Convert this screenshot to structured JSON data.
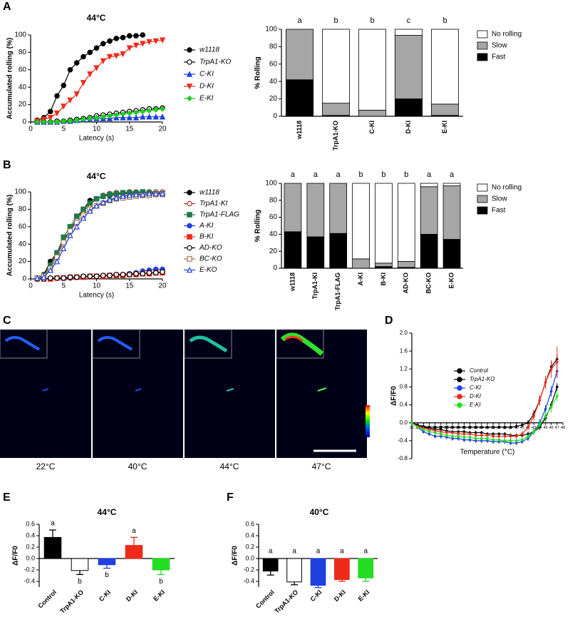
{
  "panel_labels": [
    "A",
    "B",
    "C",
    "D",
    "E",
    "F"
  ],
  "images": {
    "captions": [
      "22°C",
      "40°C",
      "44°C",
      "47°C"
    ]
  },
  "chart_data": [
    {
      "type": "line",
      "title": "44°C",
      "xlabel": "Latency (s)",
      "ylabel": "Accumulated rolling (%)",
      "x": [
        1,
        2,
        3,
        4,
        5,
        6,
        7,
        8,
        9,
        10,
        11,
        12,
        13,
        14,
        15,
        16,
        17,
        18,
        19,
        20
      ],
      "xlim": [
        0,
        20
      ],
      "xticks": [
        0,
        5,
        10,
        15,
        20
      ],
      "ylim": [
        0,
        100
      ],
      "yticks": [
        0,
        20,
        40,
        60,
        80,
        100
      ],
      "legend": "right",
      "series": [
        {
          "name": "w1118",
          "color": "#000000",
          "marker": "circle",
          "values": [
            2,
            5,
            12,
            30,
            42,
            60,
            68,
            75,
            80,
            85,
            90,
            93,
            96,
            97,
            99,
            99,
            100,
            null,
            null,
            null
          ]
        },
        {
          "name": "TrpA1-KO",
          "color": "#000000",
          "marker": "circle-open",
          "values": [
            0,
            0,
            0,
            1,
            1,
            2,
            3,
            4,
            5,
            7,
            8,
            9,
            10,
            11,
            12,
            13,
            14,
            15,
            15,
            16
          ]
        },
        {
          "name": "C-KI",
          "color": "#1f3fe0",
          "marker": "triangle",
          "values": [
            0,
            0,
            0,
            0,
            1,
            1,
            2,
            3,
            3,
            4,
            4,
            4,
            5,
            5,
            5,
            5,
            6,
            6,
            6,
            6
          ]
        },
        {
          "name": "D-KI",
          "color": "#ee2a1a",
          "marker": "triangle-down",
          "values": [
            1,
            3,
            5,
            10,
            18,
            25,
            32,
            45,
            55,
            62,
            70,
            75,
            76,
            78,
            85,
            88,
            90,
            92,
            93,
            94
          ]
        },
        {
          "name": "E-KI",
          "color": "#22cc22",
          "marker": "diamond",
          "values": [
            0,
            0,
            0,
            0,
            1,
            1,
            2,
            3,
            4,
            5,
            6,
            7,
            8,
            9,
            10,
            11,
            12,
            13,
            14,
            15
          ]
        }
      ]
    },
    {
      "type": "stacked_bar",
      "ylabel": "% Rolling",
      "categories": [
        "w1118",
        "TrpA1-KO",
        "C-KI",
        "D-KI",
        "E-KI"
      ],
      "letters": [
        "a",
        "b",
        "b",
        "c",
        "b"
      ],
      "ylim": [
        0,
        100
      ],
      "yticks": [
        0,
        20,
        40,
        60,
        80,
        100
      ],
      "legend": "right",
      "series": [
        {
          "name": "Fast",
          "color": "#000000",
          "values": [
            42,
            1,
            0,
            20,
            1
          ]
        },
        {
          "name": "Slow",
          "color": "#a6a6a6",
          "values": [
            58,
            14,
            7,
            73,
            13
          ]
        },
        {
          "name": "No rolling",
          "color": "#ffffff",
          "values": [
            0,
            85,
            93,
            7,
            86
          ]
        }
      ]
    },
    {
      "type": "line",
      "title": "44°C",
      "xlabel": "Latency (s)",
      "ylabel": "Accumulated rolling (%)",
      "x": [
        1,
        2,
        3,
        4,
        5,
        6,
        7,
        8,
        9,
        10,
        11,
        12,
        13,
        14,
        15,
        16,
        17,
        18,
        19,
        20
      ],
      "xlim": [
        0,
        20
      ],
      "xticks": [
        0,
        5,
        10,
        15,
        20
      ],
      "ylim": [
        0,
        100
      ],
      "yticks": [
        0,
        20,
        40,
        60,
        80,
        100
      ],
      "legend": "right",
      "series": [
        {
          "name": "w1118",
          "color": "#000000",
          "marker": "circle",
          "values": [
            1,
            5,
            20,
            30,
            45,
            55,
            70,
            80,
            90,
            92,
            95,
            96,
            97,
            98,
            98,
            98,
            99,
            99,
            99,
            99
          ]
        },
        {
          "name": "TrpA1-KI",
          "color": "#c0281c",
          "marker": "circle-open",
          "values": [
            1,
            4,
            15,
            28,
            42,
            55,
            68,
            78,
            85,
            92,
            96,
            98,
            99,
            99,
            100,
            100,
            100,
            100,
            100,
            100
          ]
        },
        {
          "name": "TrpA1-FLAG",
          "color": "#1f7a4d",
          "marker": "square",
          "values": [
            1,
            4,
            16,
            30,
            48,
            60,
            72,
            80,
            87,
            92,
            95,
            97,
            98,
            99,
            99,
            99,
            100,
            99,
            98,
            98
          ]
        },
        {
          "name": "A-KI",
          "color": "#1f3fe0",
          "marker": "circle",
          "values": [
            0,
            0,
            0,
            1,
            1,
            1,
            2,
            2,
            3,
            3,
            4,
            4,
            5,
            5,
            6,
            7,
            9,
            10,
            11,
            11
          ]
        },
        {
          "name": "B-KI",
          "color": "#ee2a1a",
          "marker": "square",
          "values": [
            0,
            0,
            0,
            1,
            1,
            2,
            2,
            2,
            3,
            3,
            3,
            4,
            4,
            4,
            5,
            5,
            6,
            6,
            7,
            7
          ]
        },
        {
          "name": "AD-KO",
          "color": "#000000",
          "marker": "circle-open",
          "values": [
            0,
            0,
            1,
            1,
            1,
            2,
            2,
            3,
            3,
            3,
            4,
            4,
            5,
            5,
            5,
            6,
            6,
            7,
            7,
            8
          ]
        },
        {
          "name": "BC-KO",
          "color": "#a0784a",
          "marker": "square-open",
          "values": [
            1,
            3,
            12,
            25,
            42,
            55,
            65,
            73,
            80,
            84,
            87,
            90,
            92,
            93,
            94,
            95,
            96,
            96,
            97,
            97
          ]
        },
        {
          "name": "E-KO",
          "color": "#1f3fe0",
          "marker": "triangle-open",
          "values": [
            1,
            2,
            10,
            20,
            35,
            50,
            60,
            70,
            78,
            84,
            88,
            91,
            93,
            95,
            96,
            97,
            97,
            98,
            98,
            98
          ]
        }
      ]
    },
    {
      "type": "stacked_bar",
      "ylabel": "% Rolling",
      "categories": [
        "w1118",
        "TrpA1-KI",
        "TrpA1-FLAG",
        "A-KI",
        "B-KI",
        "AD-KO",
        "BC-KO",
        "E-KO"
      ],
      "letters": [
        "a",
        "a",
        "a",
        "b",
        "b",
        "b",
        "a",
        "a"
      ],
      "ylim": [
        0,
        100
      ],
      "yticks": [
        0,
        20,
        40,
        60,
        80,
        100
      ],
      "legend": "right",
      "series": [
        {
          "name": "Fast",
          "color": "#000000",
          "values": [
            43,
            37,
            41,
            0,
            2,
            1,
            40,
            34
          ]
        },
        {
          "name": "Slow",
          "color": "#a6a6a6",
          "values": [
            57,
            63,
            59,
            11,
            4,
            7,
            56,
            63
          ]
        },
        {
          "name": "No rolling",
          "color": "#ffffff",
          "values": [
            0,
            0,
            0,
            89,
            94,
            92,
            4,
            3
          ]
        }
      ]
    },
    {
      "type": "line",
      "xlabel": "Temperature (°C)",
      "ylabel": "ΔF/F0",
      "x": [
        22,
        23,
        24,
        25,
        26,
        27,
        28,
        29,
        30,
        31,
        32,
        33,
        34,
        35,
        36,
        37,
        38,
        39,
        40,
        41,
        42,
        43,
        44,
        45,
        46,
        47
      ],
      "xlim": [
        22,
        48
      ],
      "xticks": [
        22,
        23,
        24,
        25,
        26,
        27,
        28,
        29,
        30,
        31,
        32,
        33,
        34,
        35,
        36,
        37,
        38,
        39,
        40,
        41,
        42,
        43,
        44,
        45,
        46,
        47,
        48
      ],
      "ylim": [
        -0.8,
        2
      ],
      "yticks": [
        -0.8,
        -0.4,
        {
          "value": 0,
          "label": "0.0"
        },
        0.4,
        0.8,
        1.2,
        1.6,
        {
          "value": 2,
          "label": "2.0"
        }
      ],
      "legend": "upper left",
      "series": [
        {
          "name": "Control",
          "color": "#000000",
          "marker": "dot",
          "values": [
            0,
            -0.05,
            -0.08,
            -0.1,
            -0.1,
            -0.1,
            -0.1,
            -0.1,
            -0.1,
            -0.1,
            -0.1,
            -0.1,
            -0.1,
            -0.1,
            -0.1,
            -0.1,
            -0.1,
            -0.1,
            -0.08,
            -0.05,
            0,
            0.2,
            0.5,
            0.9,
            1.25,
            1.42
          ],
          "errors": [
            0.02,
            0.03,
            0.03,
            0.04,
            0.04,
            0.04,
            0.04,
            0.04,
            0.04,
            0.04,
            0.04,
            0.04,
            0.04,
            0.04,
            0.04,
            0.04,
            0.04,
            0.04,
            0.05,
            0.05,
            0.06,
            0.08,
            0.1,
            0.12,
            0.12,
            0.1
          ]
        },
        {
          "name": "TrpA1-KO",
          "color": "#000000",
          "marker": "dot",
          "values": [
            0,
            -0.05,
            -0.1,
            -0.12,
            -0.15,
            -0.15,
            -0.18,
            -0.2,
            -0.2,
            -0.2,
            -0.22,
            -0.22,
            -0.22,
            -0.25,
            -0.25,
            -0.25,
            -0.25,
            -0.28,
            -0.28,
            -0.28,
            -0.25,
            -0.2,
            -0.1,
            0.1,
            0.4,
            0.8
          ],
          "errors": [
            0.02,
            0.03,
            0.03,
            0.04,
            0.04,
            0.04,
            0.04,
            0.04,
            0.04,
            0.04,
            0.04,
            0.04,
            0.04,
            0.04,
            0.04,
            0.04,
            0.04,
            0.04,
            0.04,
            0.04,
            0.05,
            0.05,
            0.06,
            0.07,
            0.08,
            0.08
          ]
        },
        {
          "name": "C-KI",
          "color": "#1f3fe0",
          "marker": "dot",
          "values": [
            0,
            -0.1,
            -0.2,
            -0.25,
            -0.3,
            -0.3,
            -0.32,
            -0.35,
            -0.35,
            -0.38,
            -0.38,
            -0.4,
            -0.4,
            -0.4,
            -0.42,
            -0.42,
            -0.42,
            -0.45,
            -0.45,
            -0.42,
            -0.35,
            -0.2,
            0,
            0.3,
            0.7,
            1.15
          ],
          "errors": [
            0.02,
            0.03,
            0.04,
            0.04,
            0.05,
            0.05,
            0.05,
            0.05,
            0.05,
            0.05,
            0.05,
            0.05,
            0.05,
            0.05,
            0.05,
            0.05,
            0.05,
            0.05,
            0.05,
            0.05,
            0.06,
            0.07,
            0.08,
            0.1,
            0.12,
            0.15
          ]
        },
        {
          "name": "D-KI",
          "color": "#ee2a1a",
          "marker": "dot",
          "values": [
            0,
            -0.08,
            -0.12,
            -0.15,
            -0.18,
            -0.2,
            -0.22,
            -0.22,
            -0.25,
            -0.25,
            -0.25,
            -0.28,
            -0.28,
            -0.28,
            -0.3,
            -0.3,
            -0.3,
            -0.3,
            -0.3,
            -0.25,
            -0.1,
            0.15,
            0.5,
            0.9,
            1.2,
            1.35
          ],
          "errors": [
            0.02,
            0.03,
            0.04,
            0.04,
            0.05,
            0.05,
            0.05,
            0.05,
            0.05,
            0.05,
            0.05,
            0.05,
            0.05,
            0.05,
            0.05,
            0.05,
            0.05,
            0.05,
            0.05,
            0.06,
            0.07,
            0.1,
            0.12,
            0.15,
            0.2,
            0.35
          ]
        },
        {
          "name": "E-KI",
          "color": "#22dd22",
          "marker": "dot",
          "values": [
            0,
            -0.1,
            -0.15,
            -0.2,
            -0.22,
            -0.25,
            -0.28,
            -0.3,
            -0.3,
            -0.32,
            -0.32,
            -0.35,
            -0.35,
            -0.35,
            -0.38,
            -0.38,
            -0.4,
            -0.4,
            -0.4,
            -0.38,
            -0.3,
            -0.2,
            -0.05,
            0.15,
            0.35,
            0.6
          ],
          "errors": [
            0.02,
            0.03,
            0.04,
            0.04,
            0.05,
            0.05,
            0.05,
            0.05,
            0.05,
            0.05,
            0.05,
            0.05,
            0.05,
            0.05,
            0.05,
            0.05,
            0.05,
            0.05,
            0.05,
            0.05,
            0.06,
            0.07,
            0.08,
            0.1,
            0.12,
            0.12
          ]
        }
      ]
    },
    {
      "type": "bar",
      "title": "44°C",
      "ylabel": "ΔF/F0",
      "categories": [
        "Control",
        "TrpA1-KO",
        "C-KI",
        "D-KI",
        "E-KI"
      ],
      "values": [
        0.37,
        -0.21,
        -0.11,
        0.23,
        -0.2
      ],
      "errors": [
        0.13,
        0.07,
        0.06,
        0.14,
        0.08
      ],
      "colors": [
        "#000000",
        "#ffffff",
        "#1f3fe0",
        "#ee2a1a",
        "#22dd22"
      ],
      "letters": [
        "a",
        "b",
        "b",
        "a",
        "b"
      ],
      "ylim": [
        -0.5,
        0.6
      ],
      "yticks": [
        -0.4,
        -0.2,
        {
          "value": 0,
          "label": "0.0"
        },
        0.2,
        0.4,
        0.6
      ]
    },
    {
      "type": "bar",
      "title": "40°C",
      "ylabel": "ΔF/F0",
      "categories": [
        "Control",
        "TrpA1-KO",
        "C-KI",
        "D-KI",
        "E-KI"
      ],
      "values": [
        -0.22,
        -0.41,
        -0.47,
        -0.37,
        -0.34
      ],
      "errors": [
        0.07,
        0.05,
        0.04,
        0.03,
        0.06
      ],
      "colors": [
        "#000000",
        "#ffffff",
        "#1f3fe0",
        "#ee2a1a",
        "#22dd22"
      ],
      "letters": [
        "a",
        "a",
        "a",
        "a",
        "a"
      ],
      "ylim": [
        -0.5,
        0.6
      ],
      "yticks": [
        -0.4,
        -0.2,
        {
          "value": 0,
          "label": "0.0"
        },
        0.2,
        0.4,
        0.6
      ]
    }
  ]
}
